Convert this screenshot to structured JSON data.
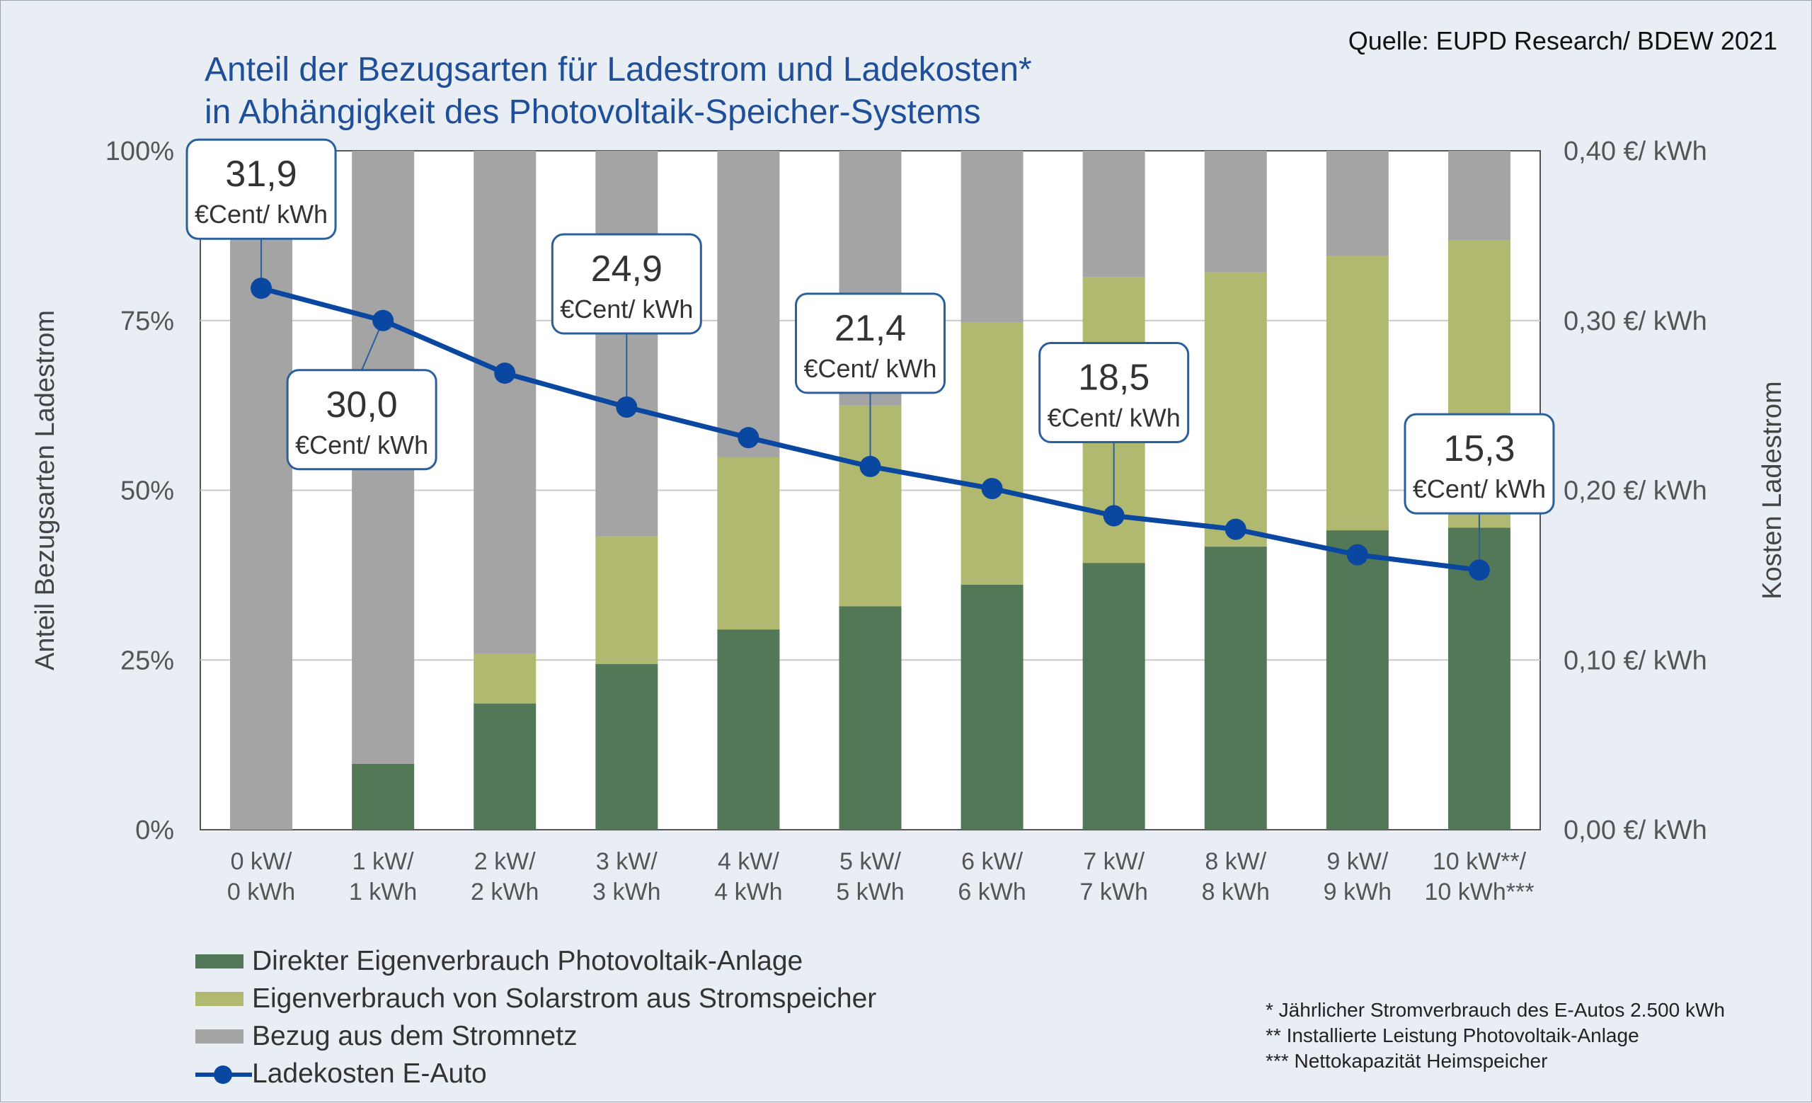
{
  "source": "Quelle: EUPD Research/ BDEW 2021",
  "title_lines": [
    "Anteil der Bezugsarten für Ladestrom und Ladekosten*",
    "in Abhängigkeit des Photovoltaik-Speicher-Systems"
  ],
  "colors": {
    "direct": "#537858",
    "storage": "#b1b970",
    "grid": "#a4a4a4",
    "line": "#0a47a1",
    "callout_border": "#2a5f9e"
  },
  "legend": [
    {
      "label": "Direkter Eigenverbrauch Photovoltaik-Anlage",
      "type": "bar",
      "color": "#537858"
    },
    {
      "label": "Eigenverbrauch von Solarstrom aus Stromspeicher",
      "type": "bar",
      "color": "#b1b970"
    },
    {
      "label": "Bezug aus dem Stromnetz",
      "type": "bar",
      "color": "#a4a4a4"
    },
    {
      "label": "Ladekosten E-Auto",
      "type": "line",
      "color": "#0a47a1"
    }
  ],
  "footnotes": [
    "* Jährlicher Stromverbrauch des E-Autos 2.500 kWh",
    "** Installierte Leistung Photovoltaik-Anlage",
    "*** Nettokapazität Heimspeicher"
  ],
  "chart_data": {
    "type": "bar",
    "stacked": true,
    "categories": [
      [
        "0 kW/",
        "0 kWh"
      ],
      [
        "1 kW/",
        "1 kWh"
      ],
      [
        "2 kW/",
        "2 kWh"
      ],
      [
        "3 kW/",
        "3 kWh"
      ],
      [
        "4 kW/",
        "4 kWh"
      ],
      [
        "5 kW/",
        "5 kWh"
      ],
      [
        "6 kW/",
        "6 kWh"
      ],
      [
        "7 kW/",
        "7 kWh"
      ],
      [
        "8 kW/",
        "8 kWh"
      ],
      [
        "9 kW/",
        "9 kWh"
      ],
      [
        "10 kW**/",
        "10 kWh***"
      ]
    ],
    "series": [
      {
        "name": "Direkter Eigenverbrauch Photovoltaik-Anlage",
        "values": [
          0,
          9.7,
          18.6,
          24.4,
          29.5,
          32.9,
          36.1,
          39.3,
          41.7,
          44.1,
          44.5
        ]
      },
      {
        "name": "Eigenverbrauch von Solarstrom aus Stromspeicher",
        "values": [
          0,
          0,
          7.3,
          18.8,
          25.4,
          29.6,
          38.6,
          42.1,
          40.4,
          40.4,
          42.3
        ]
      },
      {
        "name": "Bezug aus dem Stromnetz",
        "values": [
          100,
          90.3,
          74.1,
          56.8,
          45.1,
          37.5,
          25.3,
          18.6,
          17.9,
          15.5,
          13.2
        ]
      }
    ],
    "line_series": {
      "name": "Ladekosten E-Auto",
      "values": [
        0.319,
        0.3,
        0.269,
        0.249,
        0.231,
        0.214,
        0.201,
        0.185,
        0.177,
        0.162,
        0.153
      ]
    },
    "callouts": [
      {
        "index": 0,
        "value": "31,9",
        "unit": "€Cent/ kWh",
        "side": "above"
      },
      {
        "index": 1,
        "value": "30,0",
        "unit": "€Cent/ kWh",
        "side": "below"
      },
      {
        "index": 3,
        "value": "24,9",
        "unit": "€Cent/ kWh",
        "side": "above"
      },
      {
        "index": 5,
        "value": "21,4",
        "unit": "€Cent/ kWh",
        "side": "above"
      },
      {
        "index": 7,
        "value": "18,5",
        "unit": "€Cent/ kWh",
        "side": "above"
      },
      {
        "index": 10,
        "value": "15,3",
        "unit": "€Cent/ kWh",
        "side": "above"
      }
    ],
    "y_left": {
      "label": "Anteil Bezugsarten Ladestrom",
      "ticks": [
        "0%",
        "25%",
        "50%",
        "75%",
        "100%"
      ],
      "range": [
        0,
        100
      ]
    },
    "y_right": {
      "label": "Kosten Ladestrom",
      "ticks": [
        "0,00 €/ kWh",
        "0,10 €/ kWh",
        "0,20 €/ kWh",
        "0,30 €/ kWh",
        "0,40 €/ kWh"
      ],
      "range": [
        0,
        0.4
      ]
    },
    "grid": true,
    "legend_position": "bottom-left"
  }
}
